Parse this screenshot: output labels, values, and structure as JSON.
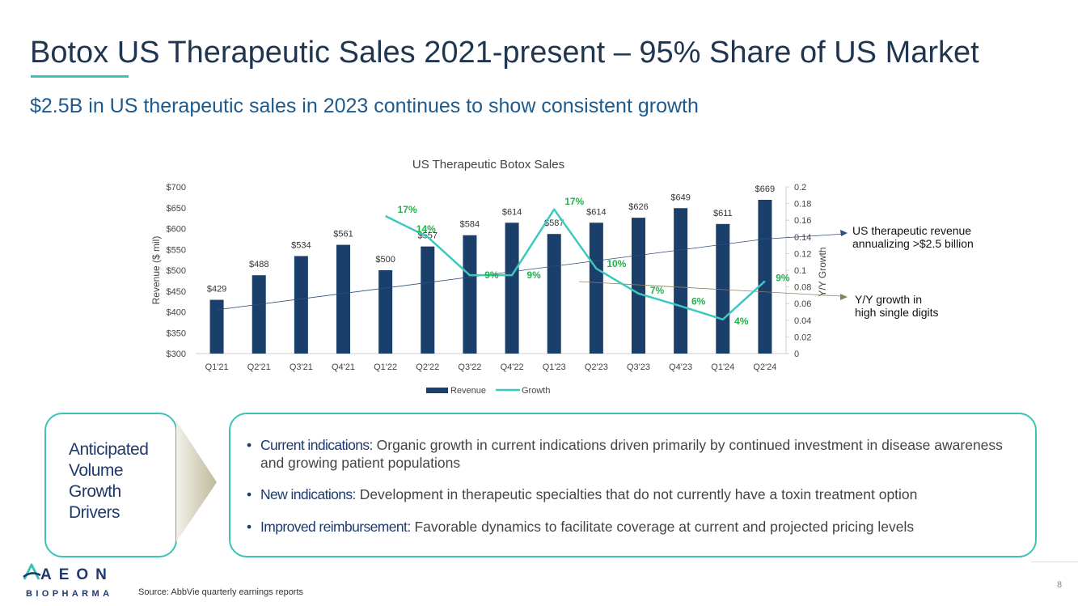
{
  "title": "Botox US Therapeutic Sales 2021-present – 95% Share of US Market",
  "subtitle": "$2.5B in US therapeutic sales in 2023 continues to show consistent growth",
  "colors": {
    "accent": "#3cc3b5",
    "navy": "#1f3a6e",
    "bar": "#1b3f6b",
    "growth_line": "#3cc9bd",
    "growth_label": "#22b14c"
  },
  "chart_data": {
    "type": "bar",
    "title": "US Therapeutic Botox Sales",
    "categories": [
      "Q1'21",
      "Q2'21",
      "Q3'21",
      "Q4'21",
      "Q1'22",
      "Q2'22",
      "Q3'22",
      "Q4'22",
      "Q1'23",
      "Q2'23",
      "Q3'23",
      "Q4'23",
      "Q1'24",
      "Q2'24"
    ],
    "series": [
      {
        "name": "Revenue",
        "type": "bar",
        "axis": "left",
        "values": [
          429,
          488,
          534,
          561,
          500,
          557,
          584,
          614,
          587,
          614,
          626,
          649,
          611,
          669
        ],
        "labels": [
          "$429",
          "$488",
          "$534",
          "$561",
          "$500",
          "$557",
          "$584",
          "$614",
          "$587",
          "$614",
          "$626",
          "$649",
          "$611",
          "$669"
        ]
      },
      {
        "name": "Growth",
        "type": "line",
        "axis": "right",
        "values": [
          null,
          null,
          null,
          null,
          0.165,
          0.14,
          0.094,
          0.094,
          0.173,
          0.102,
          0.072,
          0.057,
          0.041,
          0.087
        ],
        "labels": [
          "",
          "",
          "",
          "",
          "17%",
          "14%",
          "9%",
          "9%",
          "17%",
          "10%",
          "7%",
          "6%",
          "4%",
          "9%"
        ]
      }
    ],
    "ylabel": "Revenue ($ mil)",
    "ylim": [
      300,
      700
    ],
    "yticks": [
      "$300",
      "$350",
      "$400",
      "$450",
      "$500",
      "$550",
      "$600",
      "$650",
      "$700"
    ],
    "y2label": "Y/Y Growth",
    "y2lim": [
      0,
      0.2
    ],
    "y2ticks": [
      "0",
      "0.02",
      "0.04",
      "0.06",
      "0.08",
      "0.1",
      "0.12",
      "0.14",
      "0.16",
      "0.18",
      "0.2"
    ],
    "trendline": {
      "from": [
        0,
        405
      ],
      "to": [
        13,
        575
      ]
    },
    "legend": [
      "Revenue",
      "Growth"
    ],
    "legend_position": "bottom"
  },
  "callouts": {
    "revenue": [
      "US therapeutic revenue",
      "annualizing >$2.5 billion"
    ],
    "growth": [
      "Y/Y growth in",
      "high single digits"
    ]
  },
  "drivers": {
    "label_lines": [
      "Anticipated",
      "Volume",
      "Growth",
      "Drivers"
    ],
    "bullets": [
      {
        "head": "Current indications:",
        "text": " Organic growth in current indications driven primarily by continued investment in disease awareness and growing patient populations"
      },
      {
        "head": "New indications:",
        "text": " Development in therapeutic specialties that do not currently have a toxin treatment option"
      },
      {
        "head": "Improved reimbursement:",
        "text": " Favorable dynamics to facilitate coverage at current and projected pricing levels"
      }
    ]
  },
  "footer": {
    "logo_main": "AEON",
    "logo_sub": "BIOPHARMA",
    "source": "Source: AbbVie quarterly earnings reports",
    "page_number": "8"
  }
}
